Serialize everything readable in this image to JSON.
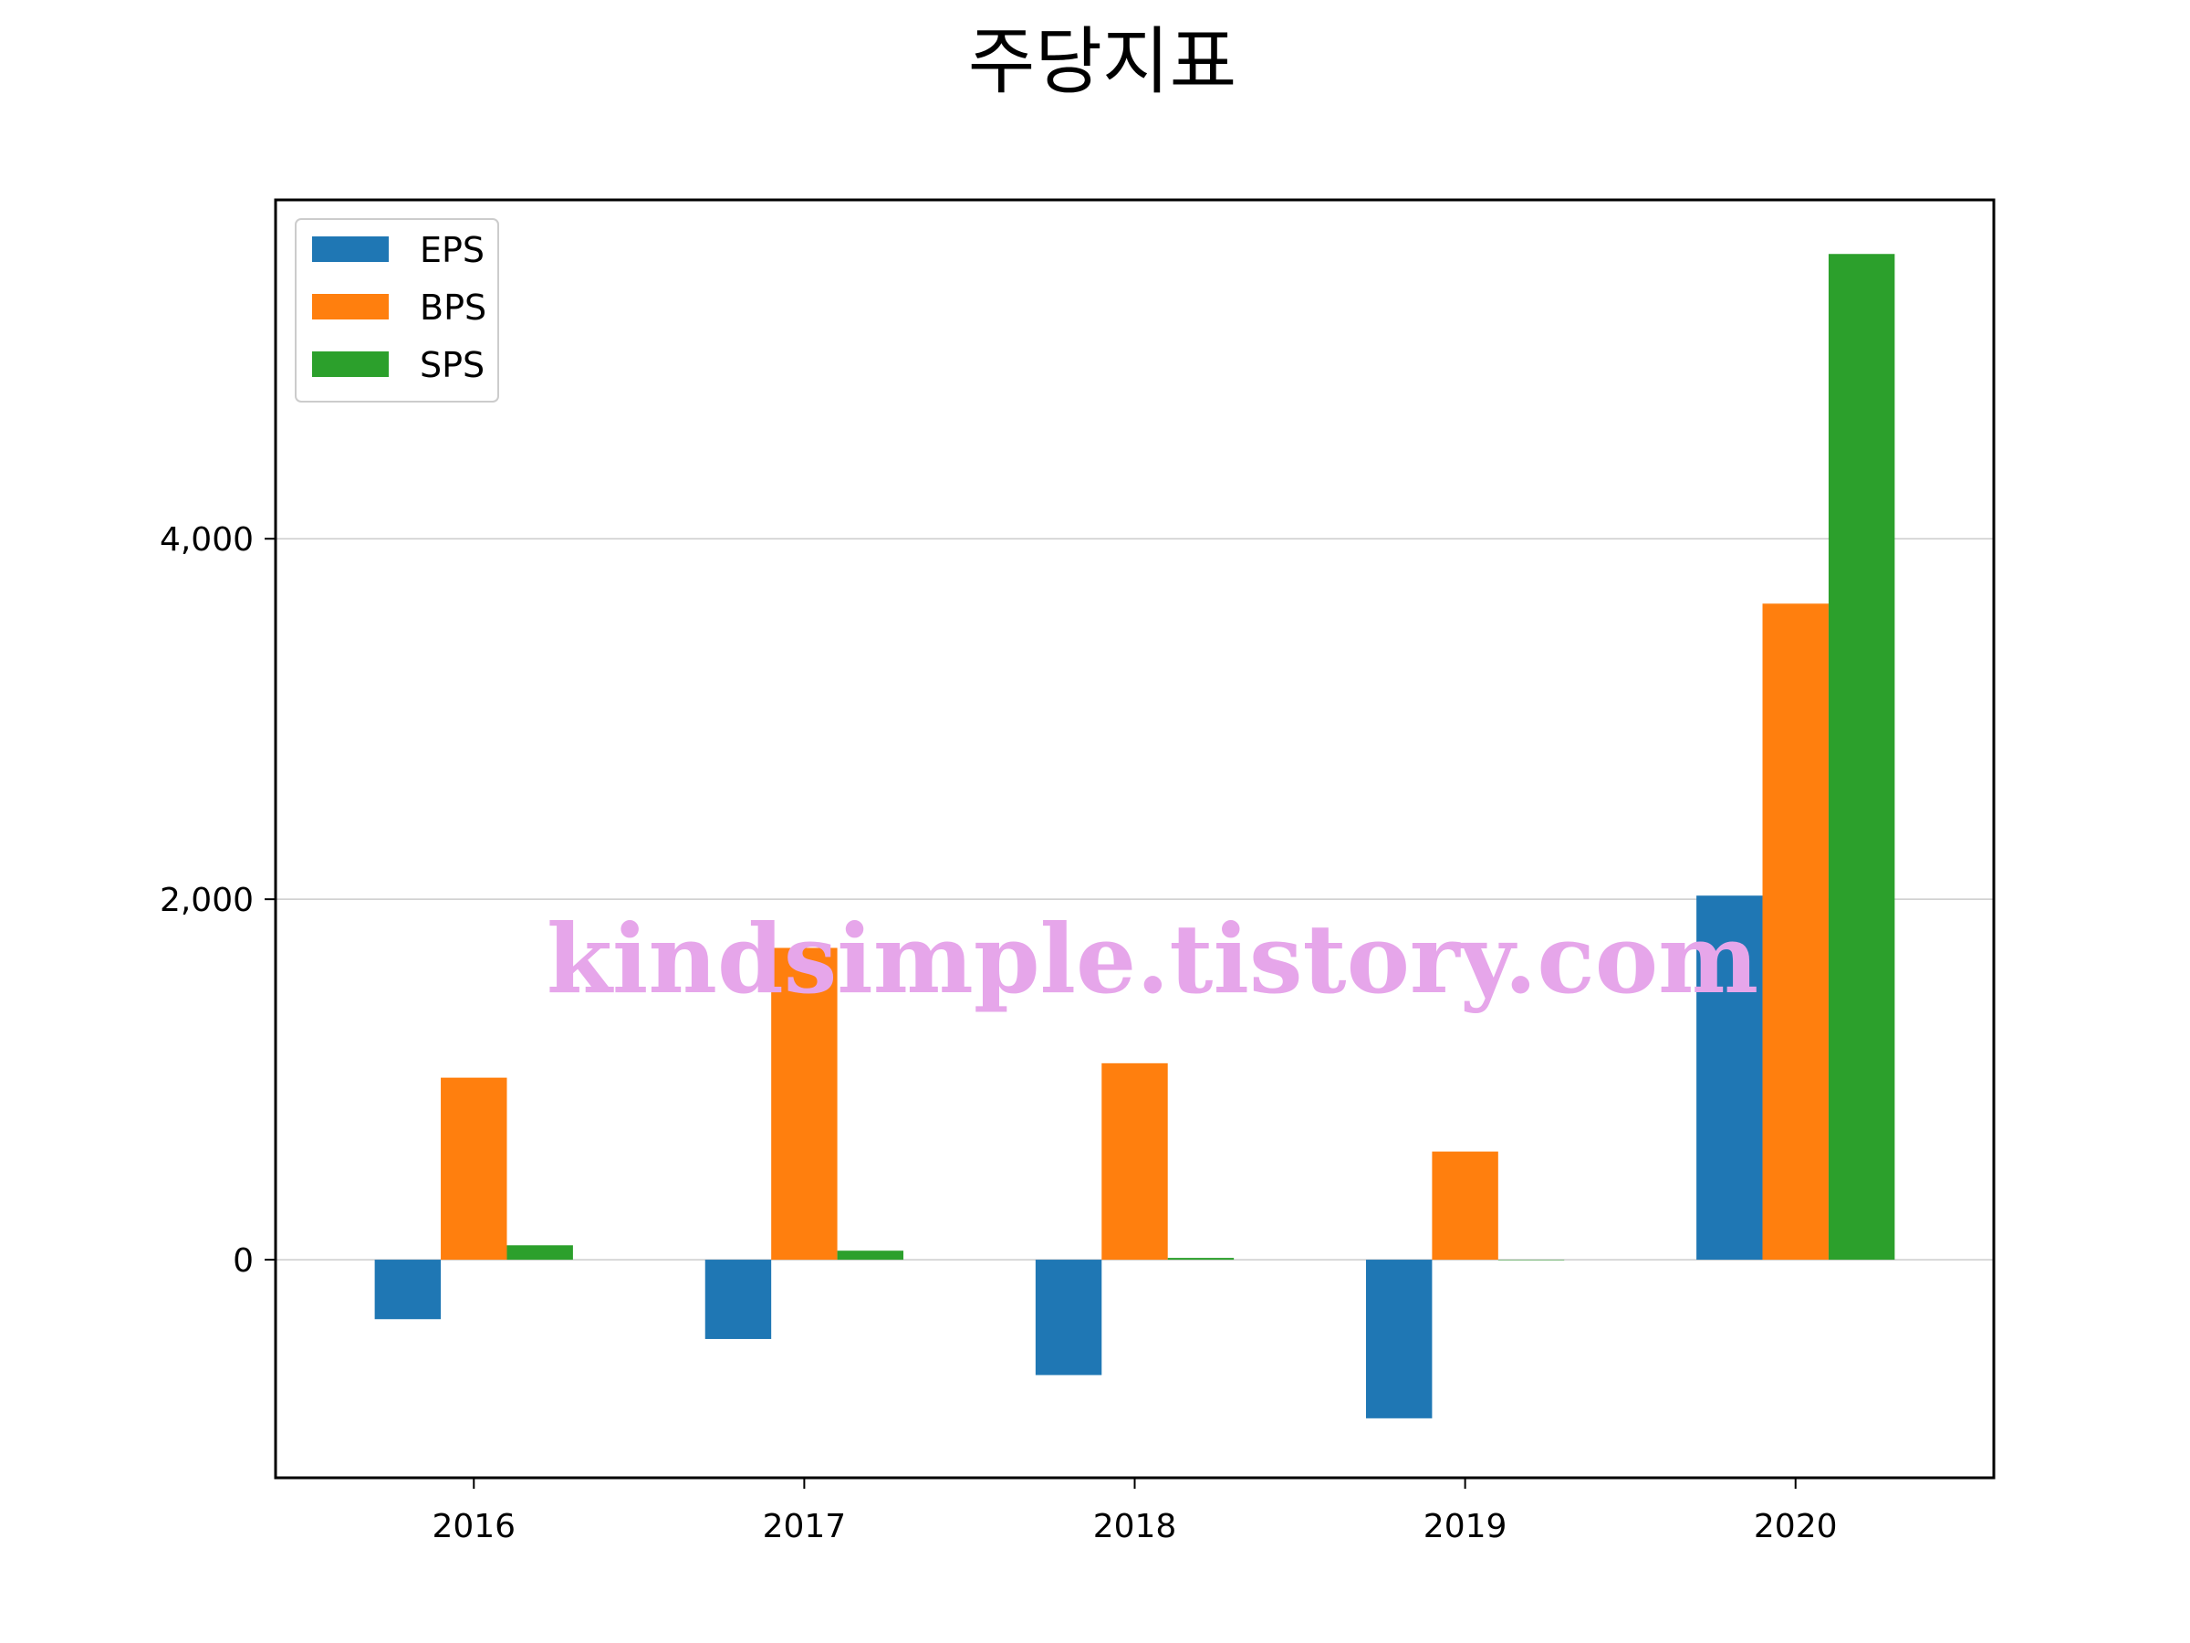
{
  "chart_data": {
    "type": "bar",
    "title": "주당지표",
    "categories": [
      "2016",
      "2017",
      "2018",
      "2019",
      "2020"
    ],
    "series": [
      {
        "name": "EPS",
        "color": "#1f77b4",
        "values": [
          -330,
          -440,
          -640,
          -880,
          2020
        ]
      },
      {
        "name": "BPS",
        "color": "#ff7f0e",
        "values": [
          1010,
          1730,
          1090,
          600,
          3640
        ]
      },
      {
        "name": "SPS",
        "color": "#2ca02c",
        "values": [
          80,
          50,
          10,
          0,
          5580
        ]
      }
    ],
    "ylim": [
      -1210,
      5880
    ],
    "yticks": [
      0,
      2000,
      4000
    ],
    "ytick_labels": [
      "0",
      "2,000",
      "4,000"
    ],
    "grid": "y",
    "legend_position": "top-left",
    "xlabel": "",
    "ylabel": ""
  },
  "watermark": "kindsimple.tistory.com"
}
